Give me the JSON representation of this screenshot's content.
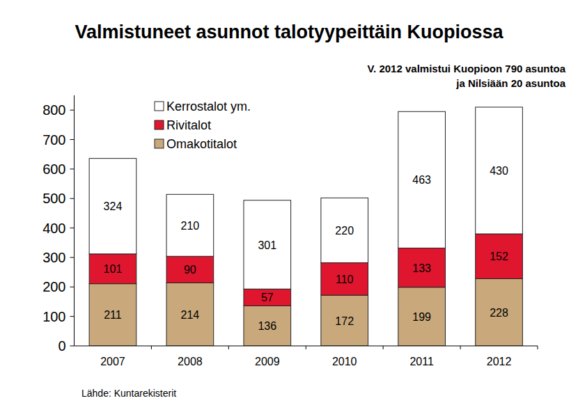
{
  "chart_data": {
    "type": "bar",
    "stacked": true,
    "data_labels": true,
    "grid": false,
    "title": "Valmistuneet asunnot talotyypeittäin Kuopiossa",
    "annotations": [
      "V. 2012 valmistui Kuopioon 790 asuntoa",
      "ja Nilsiään 20 asuntoa"
    ],
    "source": "Lähde: Kuntarekisterit",
    "categories": [
      "2007",
      "2008",
      "2009",
      "2010",
      "2011",
      "2012"
    ],
    "series": [
      {
        "name": "Omakotitalot",
        "color": "#c9a97c",
        "values": [
          211,
          214,
          136,
          172,
          199,
          228
        ]
      },
      {
        "name": "Rivitalot",
        "color": "#e0162f",
        "values": [
          101,
          90,
          57,
          110,
          133,
          152
        ]
      },
      {
        "name": "Kerrostalot ym.",
        "color": "#ffffff",
        "values": [
          324,
          210,
          301,
          220,
          463,
          430
        ]
      }
    ],
    "ylim": [
      0,
      850
    ],
    "yticks": [
      0,
      100,
      200,
      300,
      400,
      500,
      600,
      700,
      800
    ],
    "legend": "top-left"
  }
}
